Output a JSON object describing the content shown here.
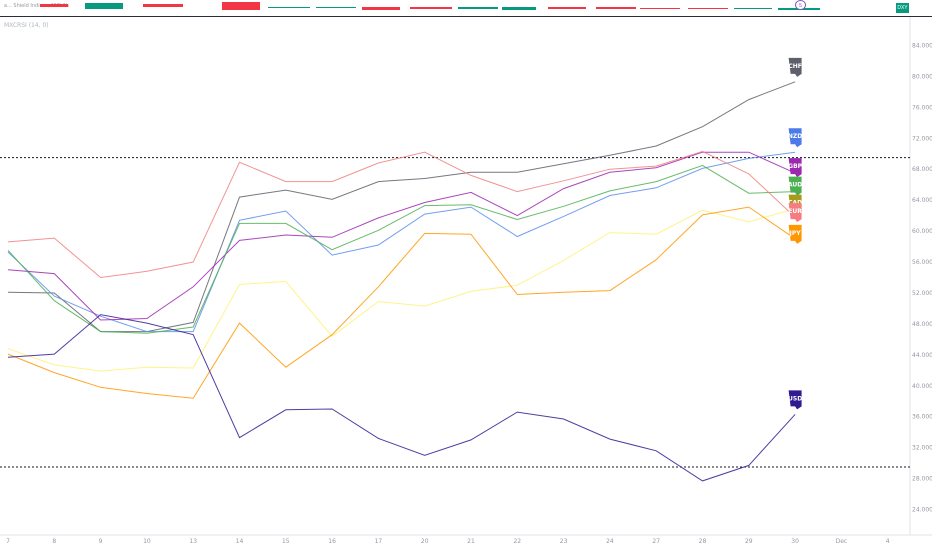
{
  "header": {
    "meta_text": "a... Shield Indices, NYS 1h",
    "indicator_title": "MXCRSI (14, 0)",
    "right_badge": "DXY",
    "center_badge": "5"
  },
  "colors": {
    "CHF": "#5d606b",
    "NZD": "#4c7be8",
    "GBP": "#9c27b0",
    "AUD": "#4caf50",
    "CAD": "#a99a1e",
    "EUR": "#f77c80",
    "JPY": "#ff9800",
    "USD": "#311b92",
    "NZD_line": "#5b8def",
    "CAD_line": "#fff176",
    "EUR_line": "#f08080"
  },
  "chart_data": {
    "type": "line",
    "x": [
      "7",
      "8",
      "9",
      "10",
      "13",
      "14",
      "15",
      "16",
      "17",
      "20",
      "21",
      "22",
      "23",
      "24",
      "27",
      "28",
      "29",
      "30"
    ],
    "x_extra": [
      "Dec",
      "4"
    ],
    "ylim": [
      22.0,
      86.0
    ],
    "yticks": [
      "84.000",
      "80.000",
      "76.000",
      "72.000",
      "68.000",
      "64.000",
      "60.000",
      "56.000",
      "52.000",
      "48.000",
      "44.000",
      "40.000",
      "36.000",
      "32.000",
      "28.000",
      "24.000"
    ],
    "hlines": [
      69.5,
      29.5
    ],
    "series": [
      {
        "name": "CHF",
        "values": [
          52.1,
          52.0,
          47.0,
          47.0,
          48.2,
          64.4,
          65.3,
          64.1,
          66.4,
          66.8,
          67.6,
          67.6,
          68.7,
          69.8,
          71.0,
          73.5,
          77.0,
          79.3
        ]
      },
      {
        "name": "NZD",
        "values": [
          57.3,
          51.6,
          49.0,
          47.0,
          47.0,
          61.4,
          62.6,
          56.9,
          58.2,
          62.2,
          63.1,
          59.3,
          61.9,
          64.6,
          65.6,
          68.1,
          69.4,
          70.2
        ]
      },
      {
        "name": "GBP",
        "values": [
          55.0,
          54.5,
          48.5,
          48.7,
          52.8,
          58.8,
          59.5,
          59.2,
          61.7,
          63.7,
          65.0,
          62.0,
          65.5,
          67.6,
          68.2,
          70.2,
          70.2,
          67.5
        ]
      },
      {
        "name": "AUD",
        "values": [
          57.5,
          51.0,
          47.0,
          46.8,
          47.6,
          61.0,
          61.0,
          57.6,
          60.1,
          63.3,
          63.4,
          61.5,
          63.2,
          65.2,
          66.4,
          68.5,
          64.9,
          65.1
        ]
      },
      {
        "name": "CAD",
        "values": [
          44.8,
          42.7,
          41.9,
          42.4,
          42.3,
          53.1,
          53.5,
          46.4,
          50.9,
          50.3,
          52.2,
          53.0,
          56.2,
          59.8,
          59.6,
          62.7,
          61.2,
          62.9
        ]
      },
      {
        "name": "EUR",
        "values": [
          58.6,
          59.1,
          54.0,
          54.8,
          56.0,
          68.9,
          66.4,
          66.4,
          68.8,
          70.2,
          67.2,
          65.1,
          66.5,
          68.0,
          68.4,
          70.3,
          67.4,
          61.8
        ]
      },
      {
        "name": "JPY",
        "values": [
          44.1,
          41.7,
          39.8,
          39.0,
          38.4,
          48.1,
          42.4,
          46.6,
          52.8,
          59.7,
          59.6,
          51.8,
          52.1,
          52.3,
          56.3,
          62.1,
          63.1,
          59.0
        ]
      },
      {
        "name": "USD",
        "values": [
          43.7,
          44.1,
          49.2,
          48.1,
          46.6,
          33.3,
          36.9,
          37.0,
          33.2,
          31.0,
          33.0,
          36.6,
          35.7,
          33.1,
          31.6,
          27.7,
          29.7,
          36.3
        ]
      }
    ],
    "labels": [
      {
        "name": "CHF"
      },
      {
        "name": "NZD"
      },
      {
        "name": "GBP"
      },
      {
        "name": "AUD"
      },
      {
        "name": "CAD"
      },
      {
        "name": "EUR"
      },
      {
        "name": "JPY"
      },
      {
        "name": "USD"
      }
    ]
  }
}
